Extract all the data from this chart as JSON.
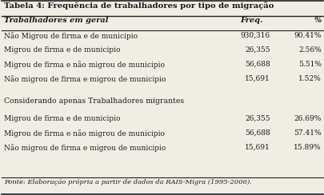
{
  "title": "Tabela 4: Frequência de trabalhadores por tipo de migração",
  "header_row": [
    "Trabalhadores em geral",
    "Freq.",
    "%"
  ],
  "section1_rows": [
    [
      "Não Migrou de firma e de municipio",
      "930,316",
      "90.41%"
    ],
    [
      "Migrou de firma e de municipio",
      "26,355",
      "2.56%"
    ],
    [
      "Migrou de firma e não migrou de municipio",
      "56,688",
      "5.51%"
    ],
    [
      "Não migrou de firma e migrou de municipio",
      "15,691",
      "1.52%"
    ]
  ],
  "section2_header": "Considerando apenas Trabalhadores migrantes",
  "section2_rows": [
    [
      "Migrou de firma e de municipio",
      "26,355",
      "26.69%"
    ],
    [
      "Migrou de firma e não migrou de municipio",
      "56,688",
      "57.41%"
    ],
    [
      "Não migrou de firma e migrou de municipio",
      "15,691",
      "15.89%"
    ]
  ],
  "footer": "Fonte: Elaboração própria a partir de dados da RAIS-Migra (1995-2006).",
  "bg_color": "#f0ede4",
  "border_color": "#222222",
  "text_color": "#1a1a1a",
  "title_fontsize": 7.2,
  "body_fontsize": 6.5,
  "footer_fontsize": 6.0
}
